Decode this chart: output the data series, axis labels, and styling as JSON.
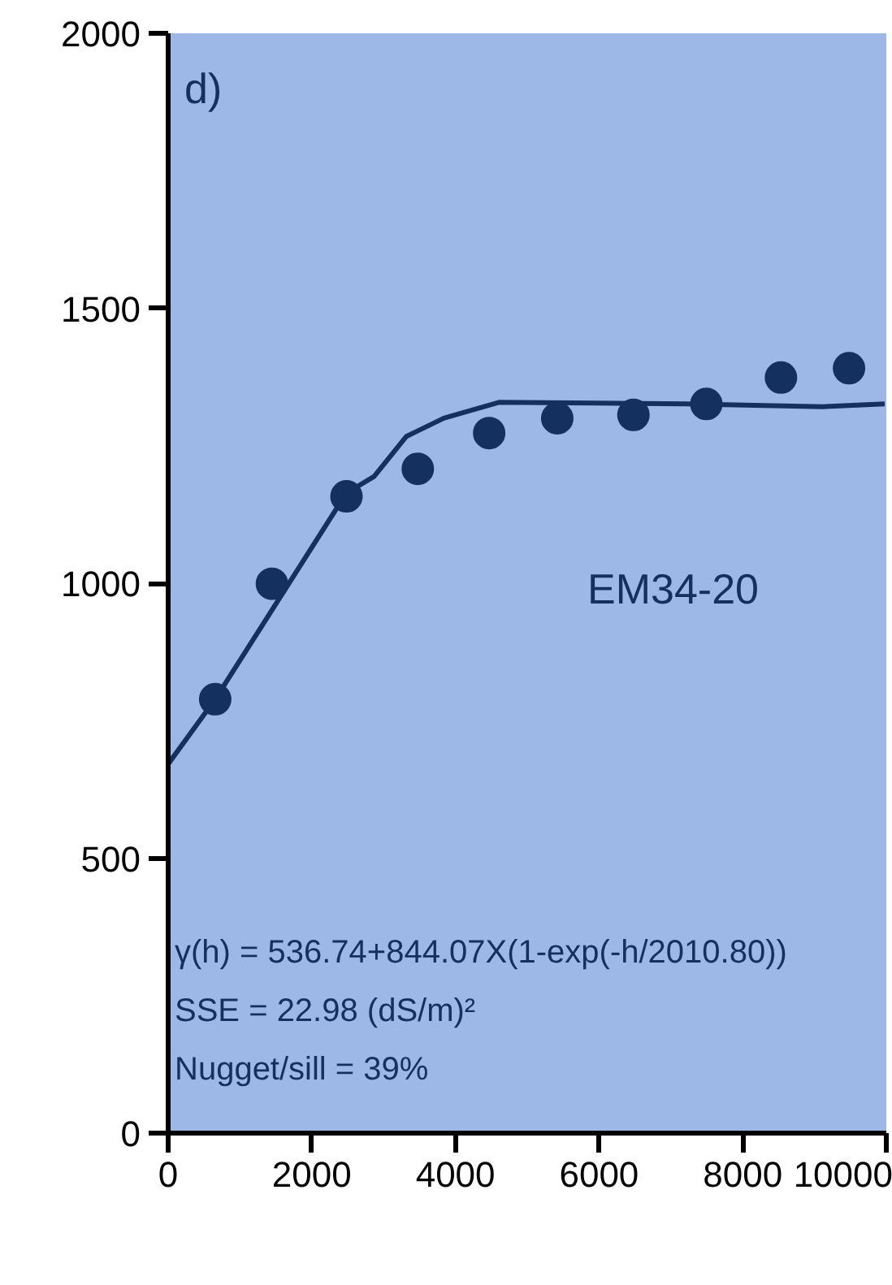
{
  "chart_data": {
    "type": "scatter",
    "xlim": [
      0,
      10000
    ],
    "ylim": [
      0,
      2000
    ],
    "xticks": [
      0,
      2000,
      4000,
      6000,
      8000,
      10000
    ],
    "yticks": [
      0,
      500,
      1000,
      1500,
      2000
    ],
    "grid": false,
    "series": [
      {
        "type": "line",
        "color": "#14305e",
        "line_style": "solid",
        "marker": "none",
        "x": [
          0,
          655,
          1445,
          2483,
          2867,
          3318,
          3837,
          4605,
          7223,
          9120,
          9977
        ],
        "values": [
          671,
          789,
          951,
          1164,
          1194,
          1267,
          1300,
          1329,
          1326,
          1321,
          1326
        ]
      },
      {
        "color": "#14305e",
        "marker": "circle",
        "x": [
          655,
          1445,
          2483,
          3476,
          4470,
          5418,
          6479,
          7494,
          8533,
          9481
        ],
        "values": [
          789,
          999,
          1158,
          1208,
          1273,
          1300,
          1306,
          1326,
          1374,
          1391
        ]
      }
    ],
    "annotations": [
      "d)",
      "EM34-20",
      "γ(h) = 536.74+844.07X(1-exp(-h/2010.80))",
      "SSE = 22.98 (dS/m)²",
      "Nugget/sill = 39%"
    ]
  }
}
